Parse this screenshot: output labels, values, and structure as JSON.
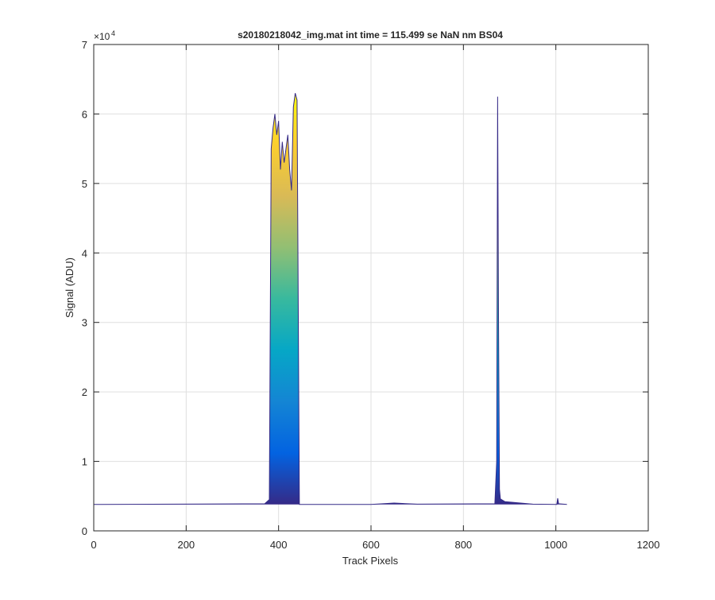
{
  "chart_data": {
    "type": "area",
    "title": "s20180218042_img.mat int time = 115.499 se  NaN nm BS04",
    "xlabel": "Track Pixels",
    "ylabel": "Signal (ADU)",
    "y_exponent_label": "×10",
    "y_exponent_power": "4",
    "xlim": [
      0,
      1200
    ],
    "ylim": [
      0,
      70000
    ],
    "x_ticks": [
      0,
      200,
      400,
      600,
      800,
      1000,
      1200
    ],
    "x_tick_labels": [
      "0",
      "200",
      "400",
      "600",
      "800",
      "1000",
      "1200"
    ],
    "y_ticks": [
      0,
      10000,
      20000,
      30000,
      40000,
      50000,
      60000,
      70000
    ],
    "y_tick_labels": [
      "0",
      "1",
      "2",
      "3",
      "4",
      "5",
      "6",
      "7"
    ],
    "grid": true,
    "colormap": [
      "#352a87",
      "#0363e1",
      "#1485d4",
      "#06a7c6",
      "#38b99e",
      "#92bf73",
      "#d9ba56",
      "#fcce2e",
      "#f9fb0e"
    ],
    "baseline": 3800,
    "x_end": 1024,
    "series": [
      {
        "x": [
          0,
          370,
          380,
          384,
          388,
          392,
          396,
          400,
          404,
          408,
          412,
          416,
          420,
          424,
          428,
          432,
          436,
          440,
          445,
          600,
          650,
          700,
          868,
          872,
          874,
          876,
          878,
          880,
          890,
          950,
          1002,
          1004,
          1006,
          1024
        ],
        "y": [
          3800,
          3900,
          4500,
          55000,
          58000,
          60000,
          57000,
          59000,
          52000,
          56000,
          53000,
          55000,
          57000,
          52000,
          49000,
          61000,
          63000,
          62000,
          3800,
          3800,
          4000,
          3850,
          3900,
          10000,
          62500,
          30000,
          6000,
          4600,
          4200,
          3850,
          3800,
          4700,
          3900,
          3800
        ]
      }
    ]
  }
}
